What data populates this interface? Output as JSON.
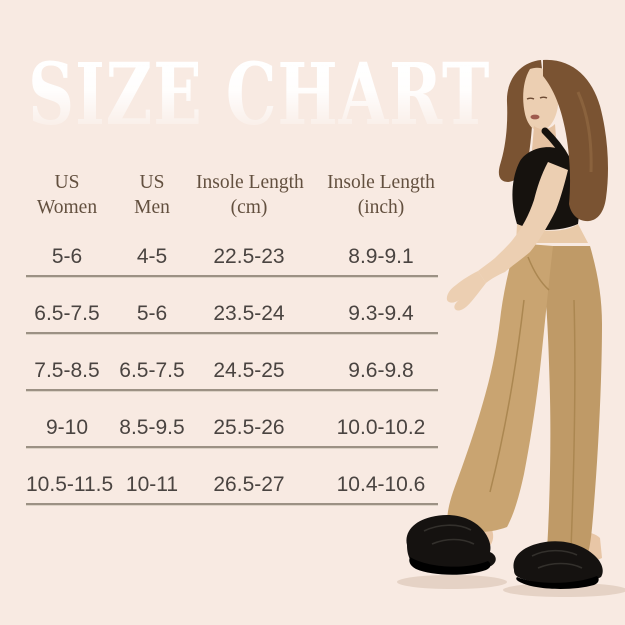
{
  "page": {
    "background_color": "#f8eae2"
  },
  "title": {
    "text": "SIZE CHART",
    "color": "#ffffff"
  },
  "table": {
    "header_text_color": "#63503f",
    "cell_text_color": "#4a4441",
    "divider_color": "#9c9184"
  },
  "chart_data": {
    "type": "table",
    "title": "SIZE CHART",
    "columns": [
      "US Women",
      "US Men",
      "Insole Length (cm)",
      "Insole Length (inch)"
    ],
    "header_lines": [
      "US\nWomen",
      "US\nMen",
      "Insole Length\n(cm)",
      "Insole Length\n(inch)"
    ],
    "rows": [
      [
        "5-6",
        "4-5",
        "22.5-23",
        "8.9-9.1"
      ],
      [
        "6.5-7.5",
        "5-6",
        "23.5-24",
        "9.3-9.4"
      ],
      [
        "7.5-8.5",
        "6.5-7.5",
        "24.5-25",
        "9.6-9.8"
      ],
      [
        "9-10",
        "8.5-9.5",
        "25.5-26",
        "10.0-10.2"
      ],
      [
        "10.5-11.5",
        "10-11",
        "26.5-27",
        "10.4-10.6"
      ]
    ]
  },
  "model_colors": {
    "hair": "#7a5332",
    "skin": "#eccfb2",
    "top": "#16120e",
    "pants": "#c9a471",
    "pants_shade": "#bf9a67",
    "seam": "#ab8751",
    "slippers": "#151210",
    "floor_shadow": "rgba(185,155,130,0.38)"
  }
}
